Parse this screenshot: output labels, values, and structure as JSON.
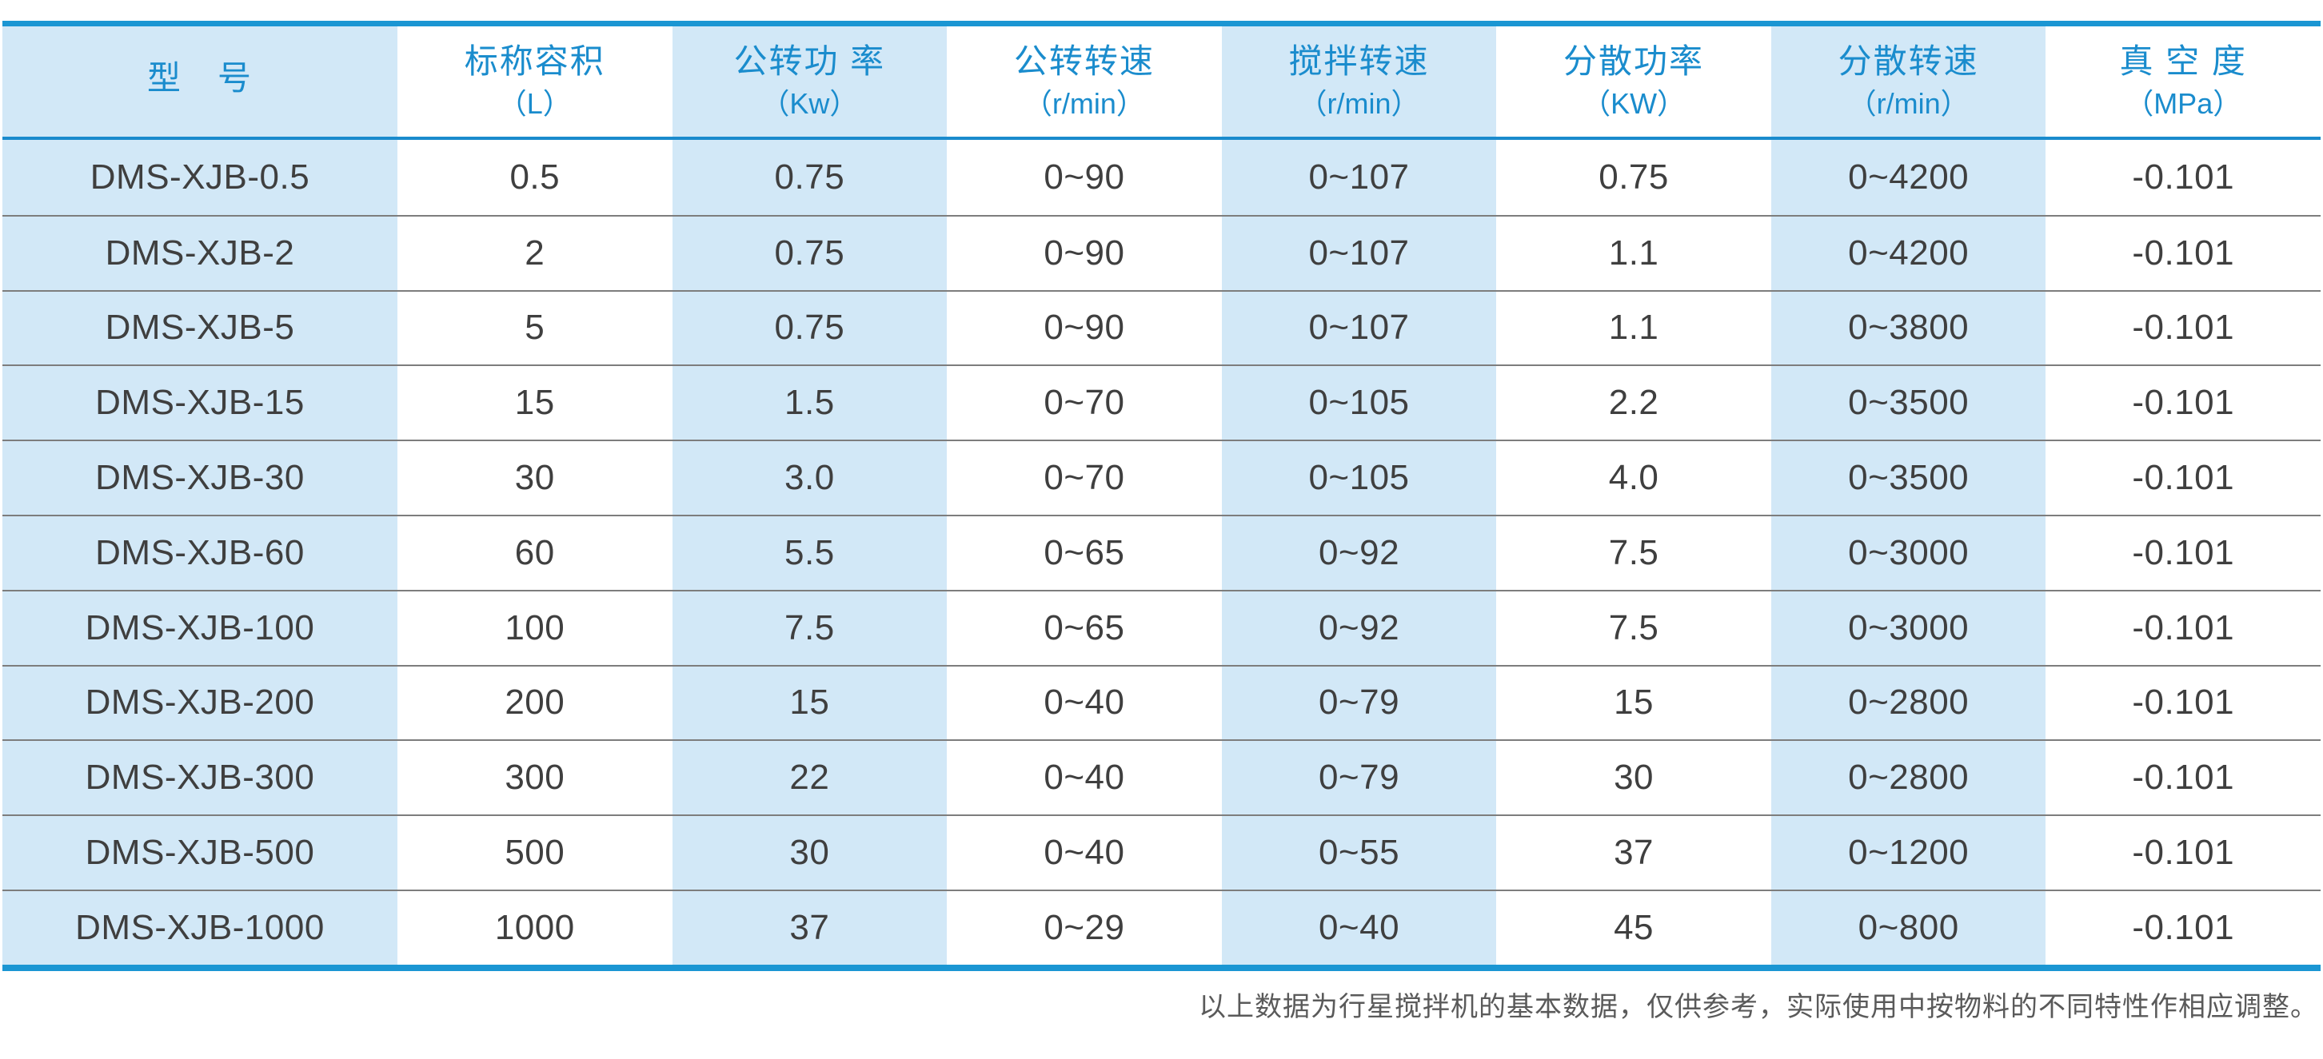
{
  "table": {
    "columns": [
      {
        "key": "model",
        "label": "型　号",
        "unit": ""
      },
      {
        "key": "capacity",
        "label": "标称容积",
        "unit": "（L）"
      },
      {
        "key": "revolution-power",
        "label": "公转功 率",
        "unit": "（Kw）"
      },
      {
        "key": "revolution-speed",
        "label": "公转转速",
        "unit": "（r/min）"
      },
      {
        "key": "stirring-speed",
        "label": "搅拌转速",
        "unit": "（r/min）"
      },
      {
        "key": "dispersion-power",
        "label": "分散功率",
        "unit": "（KW）"
      },
      {
        "key": "dispersion-speed",
        "label": "分散转速",
        "unit": "（r/min）"
      },
      {
        "key": "vacuum",
        "label": "真 空 度",
        "unit": "（MPa）"
      }
    ],
    "rows": [
      [
        "DMS-XJB-0.5",
        "0.5",
        "0.75",
        "0~90",
        "0~107",
        "0.75",
        "0~4200",
        "-0.101"
      ],
      [
        "DMS-XJB-2",
        "2",
        "0.75",
        "0~90",
        "0~107",
        "1.1",
        "0~4200",
        "-0.101"
      ],
      [
        "DMS-XJB-5",
        "5",
        "0.75",
        "0~90",
        "0~107",
        "1.1",
        "0~3800",
        "-0.101"
      ],
      [
        "DMS-XJB-15",
        "15",
        "1.5",
        "0~70",
        "0~105",
        "2.2",
        "0~3500",
        "-0.101"
      ],
      [
        "DMS-XJB-30",
        "30",
        "3.0",
        "0~70",
        "0~105",
        "4.0",
        "0~3500",
        "-0.101"
      ],
      [
        "DMS-XJB-60",
        "60",
        "5.5",
        "0~65",
        "0~92",
        "7.5",
        "0~3000",
        "-0.101"
      ],
      [
        "DMS-XJB-100",
        "100",
        "7.5",
        "0~65",
        "0~92",
        "7.5",
        "0~3000",
        "-0.101"
      ],
      [
        "DMS-XJB-200",
        "200",
        "15",
        "0~40",
        "0~79",
        "15",
        "0~2800",
        "-0.101"
      ],
      [
        "DMS-XJB-300",
        "300",
        "22",
        "0~40",
        "0~79",
        "30",
        "0~2800",
        "-0.101"
      ],
      [
        "DMS-XJB-500",
        "500",
        "30",
        "0~40",
        "0~55",
        "37",
        "0~1200",
        "-0.101"
      ],
      [
        "DMS-XJB-1000",
        "1000",
        "37",
        "0~29",
        "0~40",
        "45",
        "0~800",
        "-0.101"
      ]
    ]
  },
  "footer": {
    "note": "以上数据为行星搅拌机的基本数据，仅供参考，实际使用中按物料的不同特性作相应调整。"
  },
  "colors": {
    "accent_border": "#1b96d3",
    "header_text": "#1a8ccd",
    "column_tint": "#d2e8f7",
    "body_text": "#3f3f3f",
    "row_separator": "#7d7d7d",
    "footer_text": "#5a5a5a"
  }
}
